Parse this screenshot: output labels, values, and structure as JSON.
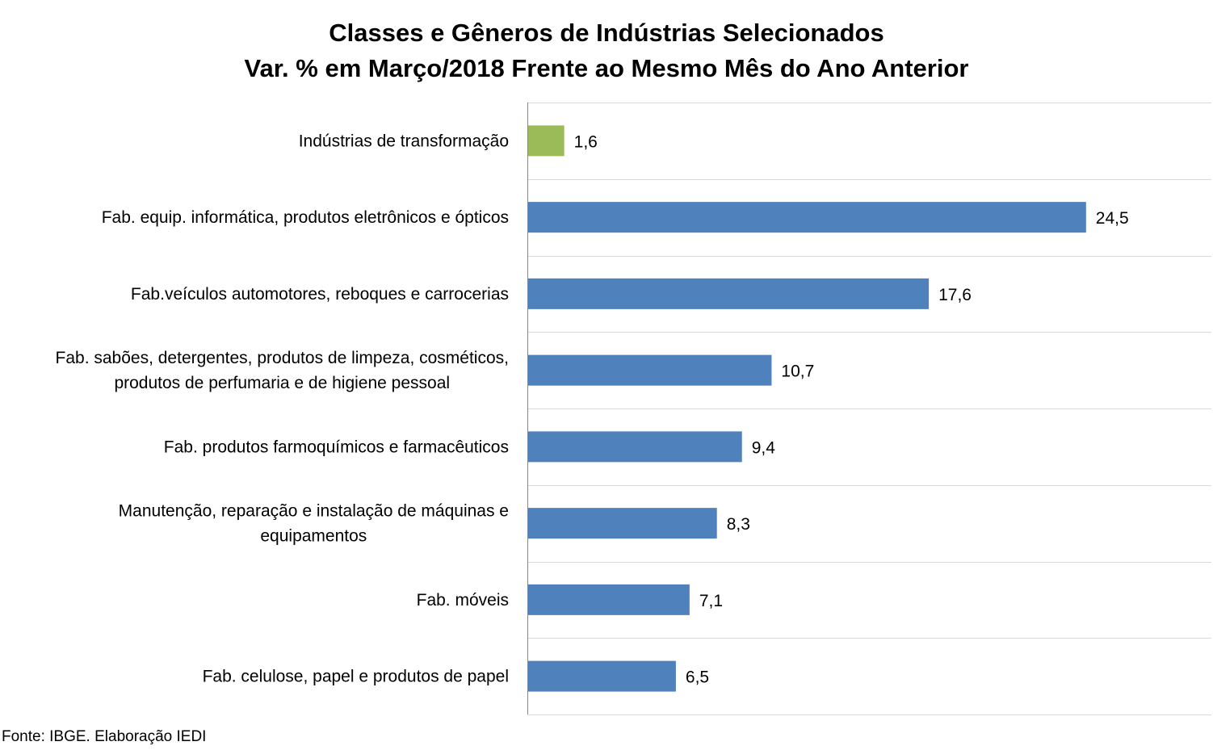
{
  "chart_data": {
    "type": "bar",
    "orientation": "horizontal",
    "title_lines": [
      "Classes e Gêneros de Indústrias Selecionados",
      "Var. % em Março/2018 Frente ao Mesmo Mês do Ano Anterior"
    ],
    "categories": [
      [
        "Indústrias de transformação"
      ],
      [
        "Fab. equip. informática, produtos eletrônicos e ópticos"
      ],
      [
        "Fab.veículos automotores, reboques e carrocerias"
      ],
      [
        "Fab. sabões, detergentes, produtos de limpeza, cosméticos,",
        "produtos de perfumaria e de higiene pessoal"
      ],
      [
        "Fab. produtos farmoquímicos e farmacêuticos"
      ],
      [
        "Manutenção, reparação e instalação de máquinas e",
        "equipamentos"
      ],
      [
        "Fab. móveis"
      ],
      [
        "Fab. celulose, papel e produtos de papel"
      ]
    ],
    "values": [
      1.6,
      24.5,
      17.6,
      10.7,
      9.4,
      8.3,
      7.1,
      6.5
    ],
    "value_labels": [
      "1,6",
      "24,5",
      "17,6",
      "10,7",
      "9,4",
      "8,3",
      "7,1",
      "6,5"
    ],
    "bar_colors": [
      "#9BBB59",
      "#4F81BD",
      "#4F81BD",
      "#4F81BD",
      "#4F81BD",
      "#4F81BD",
      "#4F81BD",
      "#4F81BD"
    ],
    "xlim": [
      0,
      30
    ],
    "grid": true,
    "legend": "none"
  },
  "source": "Fonte: IBGE. Elaboração IEDI"
}
